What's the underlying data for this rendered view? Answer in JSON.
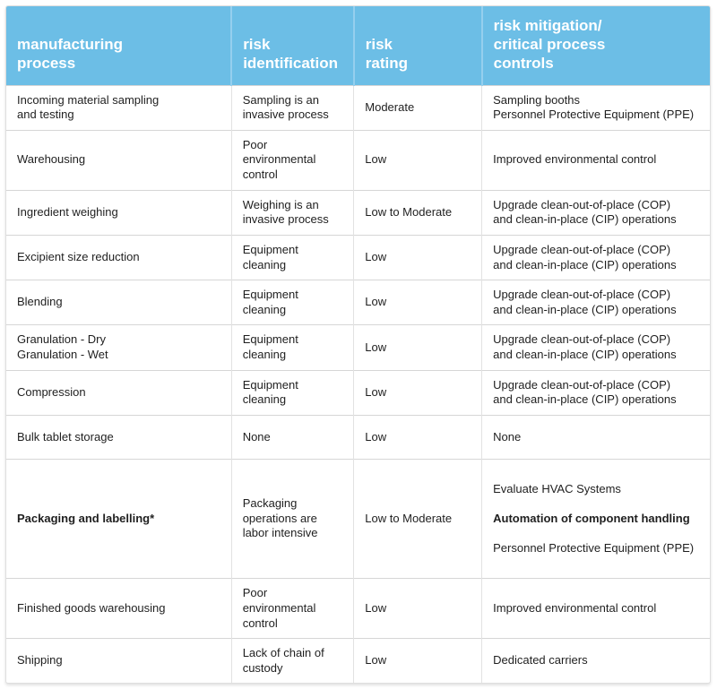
{
  "page": {
    "background": "#ffffff"
  },
  "table": {
    "accent_color": "#6cbee6",
    "header_divider_color": "#95cfee",
    "row_divider_color": "#d6d6d6",
    "column_divider_color": "#e2e2e2",
    "header_text_color": "#ffffff",
    "body_text_color": "#1f1f1f",
    "columns": [
      {
        "label": "manufacturing\nprocess"
      },
      {
        "label": "risk\nidentification"
      },
      {
        "label": "risk\nrating"
      },
      {
        "label": "risk mitigation/\ncritical process\ncontrols"
      }
    ],
    "rows": [
      {
        "process": "Incoming material sampling\nand testing",
        "identification": "Sampling is an\ninvasive process",
        "rating": "Moderate",
        "mitigation": "Sampling booths\nPersonnel Protective Equipment (PPE)"
      },
      {
        "process": "Warehousing",
        "identification": "Poor environmental\ncontrol",
        "rating": "Low",
        "mitigation": "Improved environmental control"
      },
      {
        "process": "Ingredient weighing",
        "identification": "Weighing is an\ninvasive process",
        "rating": "Low to Moderate",
        "mitigation": "Upgrade clean-out-of-place (COP)\nand clean-in-place (CIP) operations"
      },
      {
        "process": "Excipient size reduction",
        "identification": "Equipment cleaning",
        "rating": "Low",
        "mitigation": "Upgrade clean-out-of-place (COP)\nand clean-in-place (CIP) operations"
      },
      {
        "process": "Blending",
        "identification": "Equipment cleaning",
        "rating": "Low",
        "mitigation": "Upgrade clean-out-of-place (COP)\nand clean-in-place (CIP) operations"
      },
      {
        "process": "Granulation - Dry\nGranulation - Wet",
        "identification": "Equipment cleaning",
        "rating": "Low",
        "mitigation": "Upgrade clean-out-of-place (COP)\nand clean-in-place (CIP) operations"
      },
      {
        "process": "Compression",
        "identification": "Equipment cleaning",
        "rating": "Low",
        "mitigation": "Upgrade clean-out-of-place (COP)\nand clean-in-place (CIP) operations"
      },
      {
        "process": "Bulk tablet storage",
        "identification": "None",
        "rating": "Low",
        "mitigation": "None"
      },
      {
        "process": "Packaging and labelling*",
        "identification": "Packaging\noperations are\nlabor intensive",
        "rating": "Low to Moderate",
        "mitigation_lines": [
          "Evaluate HVAC Systems",
          "Automation of component handling",
          "Personnel Protective Equipment (PPE)"
        ]
      },
      {
        "process": "Finished goods warehousing",
        "identification": "Poor environmental\ncontrol",
        "rating": "Low",
        "mitigation": "Improved environmental control"
      },
      {
        "process": "Shipping",
        "identification": "Lack of chain of\ncustody",
        "rating": "Low",
        "mitigation": "Dedicated carriers"
      }
    ]
  },
  "chart_data": {
    "type": "table",
    "title": "",
    "columns": [
      "manufacturing process",
      "risk identification",
      "risk rating",
      "risk mitigation/critical process controls"
    ],
    "rows": [
      [
        "Incoming material sampling and testing",
        "Sampling is an invasive process",
        "Moderate",
        "Sampling booths; Personnel Protective Equipment (PPE)"
      ],
      [
        "Warehousing",
        "Poor environmental control",
        "Low",
        "Improved environmental control"
      ],
      [
        "Ingredient weighing",
        "Weighing is an invasive process",
        "Low to Moderate",
        "Upgrade clean-out-of-place (COP) and clean-in-place (CIP) operations"
      ],
      [
        "Excipient size reduction",
        "Equipment cleaning",
        "Low",
        "Upgrade clean-out-of-place (COP) and clean-in-place (CIP) operations"
      ],
      [
        "Blending",
        "Equipment cleaning",
        "Low",
        "Upgrade clean-out-of-place (COP) and clean-in-place (CIP) operations"
      ],
      [
        "Granulation - Dry; Granulation - Wet",
        "Equipment cleaning",
        "Low",
        "Upgrade clean-out-of-place (COP) and clean-in-place (CIP) operations"
      ],
      [
        "Compression",
        "Equipment cleaning",
        "Low",
        "Upgrade clean-out-of-place (COP) and clean-in-place (CIP) operations"
      ],
      [
        "Bulk tablet storage",
        "None",
        "Low",
        "None"
      ],
      [
        "Packaging and labelling*",
        "Packaging operations are labor intensive",
        "Low to Moderate",
        "Evaluate HVAC Systems; Automation of component handling; Personnel Protective Equipment (PPE)"
      ],
      [
        "Finished goods warehousing",
        "Poor environmental control",
        "Low",
        "Improved environmental control"
      ],
      [
        "Shipping",
        "Lack of chain of custody",
        "Low",
        "Dedicated carriers"
      ]
    ]
  }
}
